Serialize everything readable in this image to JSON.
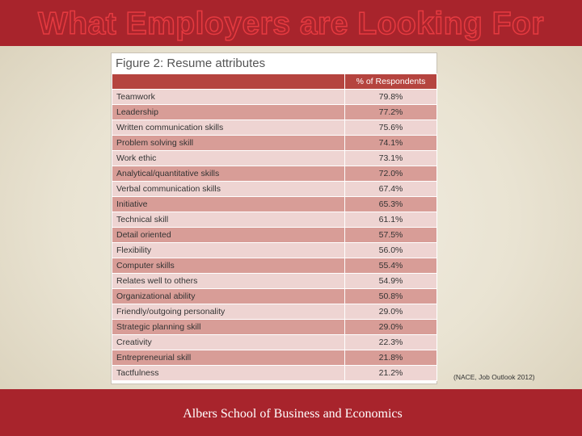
{
  "slide": {
    "title": "What Employers are Looking For",
    "footer": "Albers School of Business and Economics",
    "source_note": "(NACE, Job Outlook 2012)"
  },
  "figure": {
    "caption": "Figure 2: Resume attributes",
    "columns": [
      "",
      "% of Respondents"
    ],
    "rows": [
      {
        "attribute": "Teamwork",
        "percent": "79.8%"
      },
      {
        "attribute": "Leadership",
        "percent": "77.2%"
      },
      {
        "attribute": "Written communication skills",
        "percent": "75.6%"
      },
      {
        "attribute": "Problem solving skill",
        "percent": "74.1%"
      },
      {
        "attribute": "Work ethic",
        "percent": "73.1%"
      },
      {
        "attribute": "Analytical/quantitative skills",
        "percent": "72.0%"
      },
      {
        "attribute": "Verbal communication skills",
        "percent": "67.4%"
      },
      {
        "attribute": "Initiative",
        "percent": "65.3%"
      },
      {
        "attribute": "Technical skill",
        "percent": "61.1%"
      },
      {
        "attribute": "Detail oriented",
        "percent": "57.5%"
      },
      {
        "attribute": "Flexibility",
        "percent": "56.0%"
      },
      {
        "attribute": "Computer skills",
        "percent": "55.4%"
      },
      {
        "attribute": "Relates well to others",
        "percent": "54.9%"
      },
      {
        "attribute": "Organizational ability",
        "percent": "50.8%"
      },
      {
        "attribute": "Friendly/outgoing personality",
        "percent": "29.0%"
      },
      {
        "attribute": "Strategic planning skill",
        "percent": "29.0%"
      },
      {
        "attribute": "Creativity",
        "percent": "22.3%"
      },
      {
        "attribute": "Entrepreneurial skill",
        "percent": "21.8%"
      },
      {
        "attribute": "Tactfulness",
        "percent": "21.2%"
      }
    ]
  },
  "colors": {
    "brand_red": "#a8242c",
    "header_red": "#b5443f",
    "row_light": "#eed4d2",
    "row_dark": "#d89d97"
  }
}
